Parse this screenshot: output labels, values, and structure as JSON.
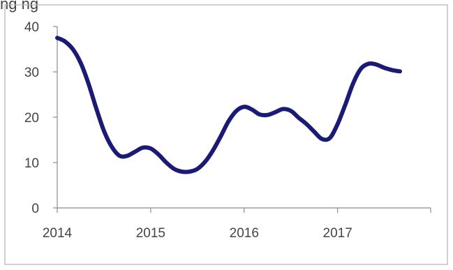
{
  "caption_fragment": "ng          ng",
  "chart_data": {
    "type": "line",
    "title": "",
    "xlabel": "",
    "ylabel": "",
    "ylim": [
      0,
      40
    ],
    "xlim": [
      2014,
      2017.996
    ],
    "yticks": [
      0,
      10,
      20,
      30,
      40
    ],
    "xticks": [
      2014,
      2015,
      2016,
      2017
    ],
    "grid": false,
    "legend": "none",
    "colors": {
      "line": "#1b1a74",
      "frame": "#b3b3b3",
      "axis": "#8c8c8c"
    },
    "series": [
      {
        "name": "",
        "x": [
          2014.0,
          2014.083,
          2014.167,
          2014.25,
          2014.333,
          2014.417,
          2014.5,
          2014.583,
          2014.667,
          2014.75,
          2014.833,
          2014.917,
          2015.0,
          2015.083,
          2015.167,
          2015.25,
          2015.333,
          2015.417,
          2015.5,
          2015.583,
          2015.667,
          2015.75,
          2015.833,
          2015.917,
          2016.0,
          2016.083,
          2016.167,
          2016.25,
          2016.333,
          2016.417,
          2016.5,
          2016.583,
          2016.667,
          2016.75,
          2016.833,
          2016.917,
          2017.0,
          2017.083,
          2017.167,
          2017.25,
          2017.333,
          2017.417,
          2017.5,
          2017.583,
          2017.667
        ],
        "y": [
          37.5,
          36.7,
          35.0,
          32.0,
          27.5,
          22.0,
          17.0,
          13.5,
          11.5,
          11.5,
          12.4,
          13.3,
          13.1,
          11.8,
          10.0,
          8.6,
          8.0,
          8.0,
          8.6,
          10.2,
          12.7,
          15.8,
          19.1,
          21.4,
          22.3,
          21.7,
          20.6,
          20.5,
          21.1,
          21.8,
          21.4,
          19.9,
          18.5,
          16.8,
          15.2,
          15.4,
          18.5,
          22.8,
          27.5,
          30.7,
          31.8,
          31.6,
          30.9,
          30.4,
          30.1
        ]
      }
    ]
  }
}
